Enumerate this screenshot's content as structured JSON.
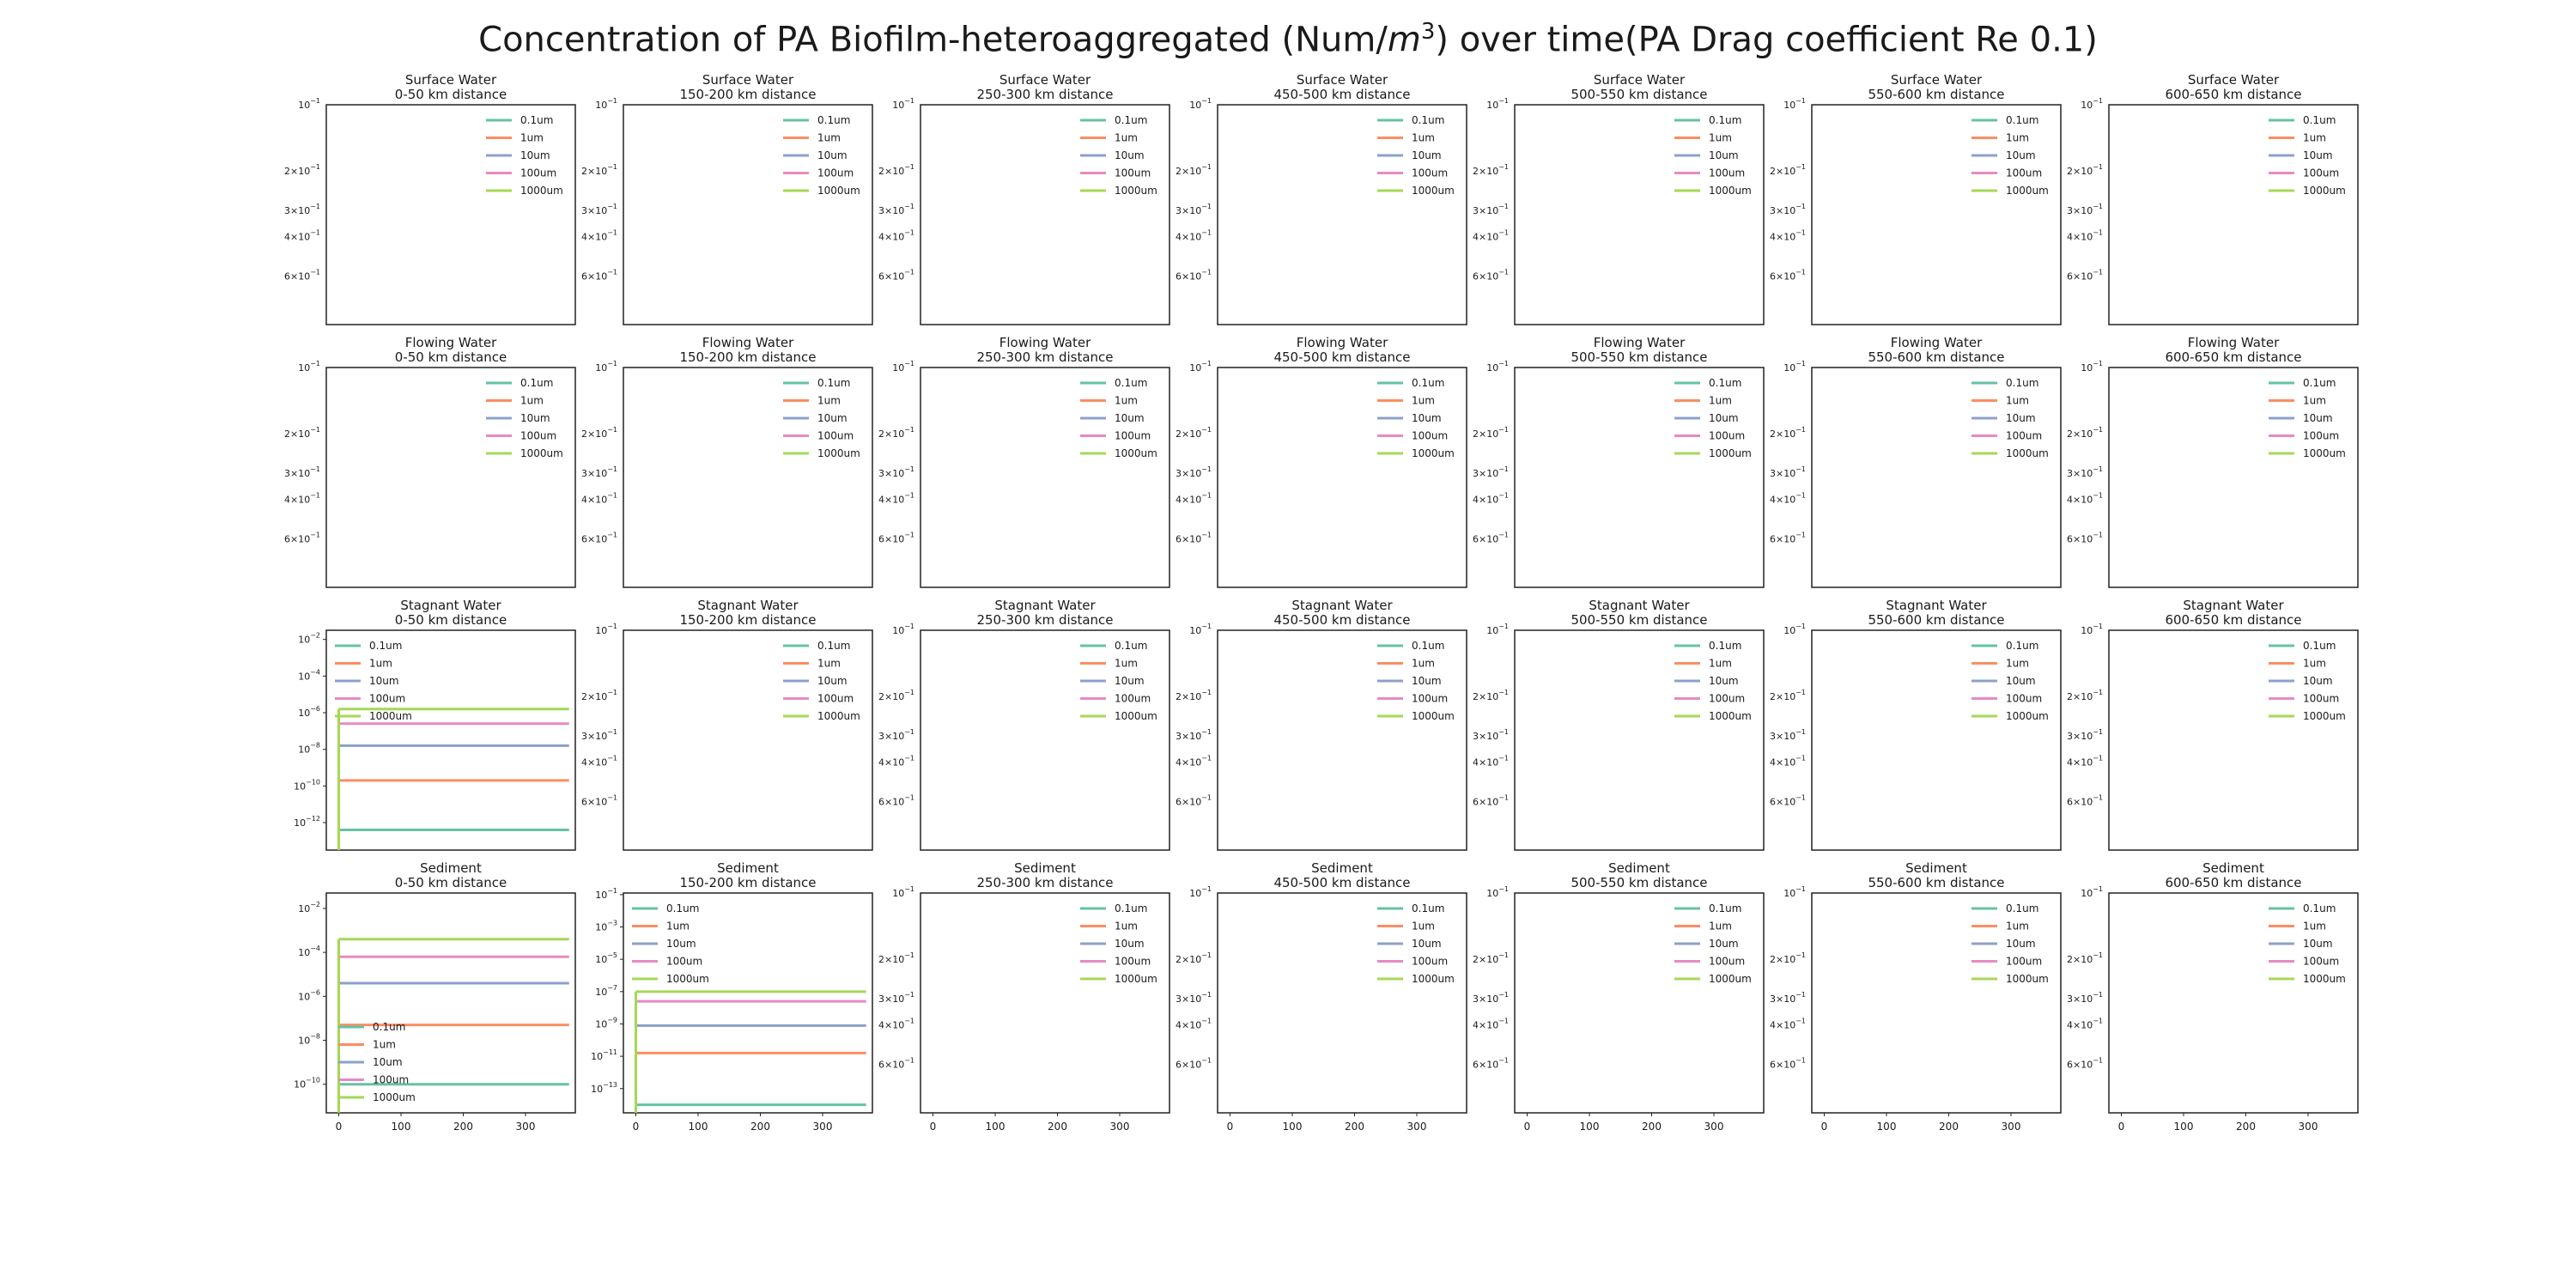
{
  "title": {
    "prefix": "Concentration of PA Biofilm-heteroaggregated (Num/",
    "unit_base": "m",
    "unit_exp": "3",
    "suffix": ") over time(PA Drag coefficient Re 0.1)"
  },
  "compartments": [
    "Surface Water",
    "Flowing Water",
    "Stagnant Water",
    "Sediment"
  ],
  "distances": [
    "0-50 km distance",
    "150-200 km distance",
    "250-300 km distance",
    "450-500 km distance",
    "500-550 km distance",
    "550-600 km distance",
    "600-650 km distance"
  ],
  "colors": {
    "0.1um": "#66c2a5",
    "1um": "#fc8d62",
    "10um": "#8da0cb",
    "100um": "#e78ac3",
    "1000um": "#a6d854"
  },
  "chart_data": {
    "type": "line",
    "layout": "4x7 small multiples",
    "y_scale": "log",
    "x_ticks": [
      0,
      100,
      200,
      300
    ],
    "x_range": [
      -20,
      380
    ],
    "legend_labels": [
      "0.1um",
      "1um",
      "10um",
      "100um",
      "1000um"
    ],
    "empty_panel_yticks": [
      {
        "mantissa": "",
        "exp": "-1",
        "pos": 0
      },
      {
        "mantissa": "2×",
        "exp": "-1",
        "pos": 0.3
      },
      {
        "mantissa": "3×",
        "exp": "-1",
        "pos": 0.48
      },
      {
        "mantissa": "4×",
        "exp": "-1",
        "pos": 0.6
      },
      {
        "mantissa": "6×",
        "exp": "-1",
        "pos": 0.78
      }
    ],
    "panels": [
      {
        "row": 2,
        "col": 0,
        "y_exp_range": [
          -13.5,
          -1.5
        ],
        "y_ticks": [
          -2,
          -4,
          -6,
          -8,
          -10,
          -12
        ],
        "legend_position": "top-left",
        "series": [
          {
            "name": "0.1um",
            "x_start": 0,
            "x_end": 370,
            "log10_value": -12.4
          },
          {
            "name": "1um",
            "x_start": 0,
            "x_end": 370,
            "log10_value": -9.7
          },
          {
            "name": "10um",
            "x_start": 0,
            "x_end": 370,
            "log10_value": -7.8
          },
          {
            "name": "100um",
            "x_start": 0,
            "x_end": 370,
            "log10_value": -6.6
          },
          {
            "name": "1000um",
            "x_start": 0,
            "x_end": 370,
            "log10_value": -5.8
          }
        ]
      },
      {
        "row": 3,
        "col": 0,
        "y_exp_range": [
          -11.3,
          -1.3
        ],
        "y_ticks": [
          -2,
          -4,
          -6,
          -8,
          -10
        ],
        "legend_position": "bottom-left",
        "series": [
          {
            "name": "0.1um",
            "x_start": 0,
            "x_end": 370,
            "log10_value": -10.0
          },
          {
            "name": "1um",
            "x_start": 0,
            "x_end": 370,
            "log10_value": -7.3
          },
          {
            "name": "10um",
            "x_start": 0,
            "x_end": 370,
            "log10_value": -5.4
          },
          {
            "name": "100um",
            "x_start": 0,
            "x_end": 370,
            "log10_value": -4.2
          },
          {
            "name": "1000um",
            "x_start": 0,
            "x_end": 370,
            "log10_value": -3.4
          }
        ]
      },
      {
        "row": 3,
        "col": 1,
        "y_exp_range": [
          -14.5,
          -0.9
        ],
        "y_ticks": [
          -1,
          -3,
          -5,
          -7,
          -9,
          -11,
          -13
        ],
        "legend_position": "top-left",
        "series": [
          {
            "name": "0.1um",
            "x_start": 0,
            "x_end": 370,
            "log10_value": -14.0
          },
          {
            "name": "1um",
            "x_start": 0,
            "x_end": 370,
            "log10_value": -10.8
          },
          {
            "name": "10um",
            "x_start": 0,
            "x_end": 370,
            "log10_value": -9.1
          },
          {
            "name": "100um",
            "x_start": 0,
            "x_end": 370,
            "log10_value": -7.6
          },
          {
            "name": "1000um",
            "x_start": 0,
            "x_end": 370,
            "log10_value": -7.0
          }
        ]
      }
    ]
  }
}
